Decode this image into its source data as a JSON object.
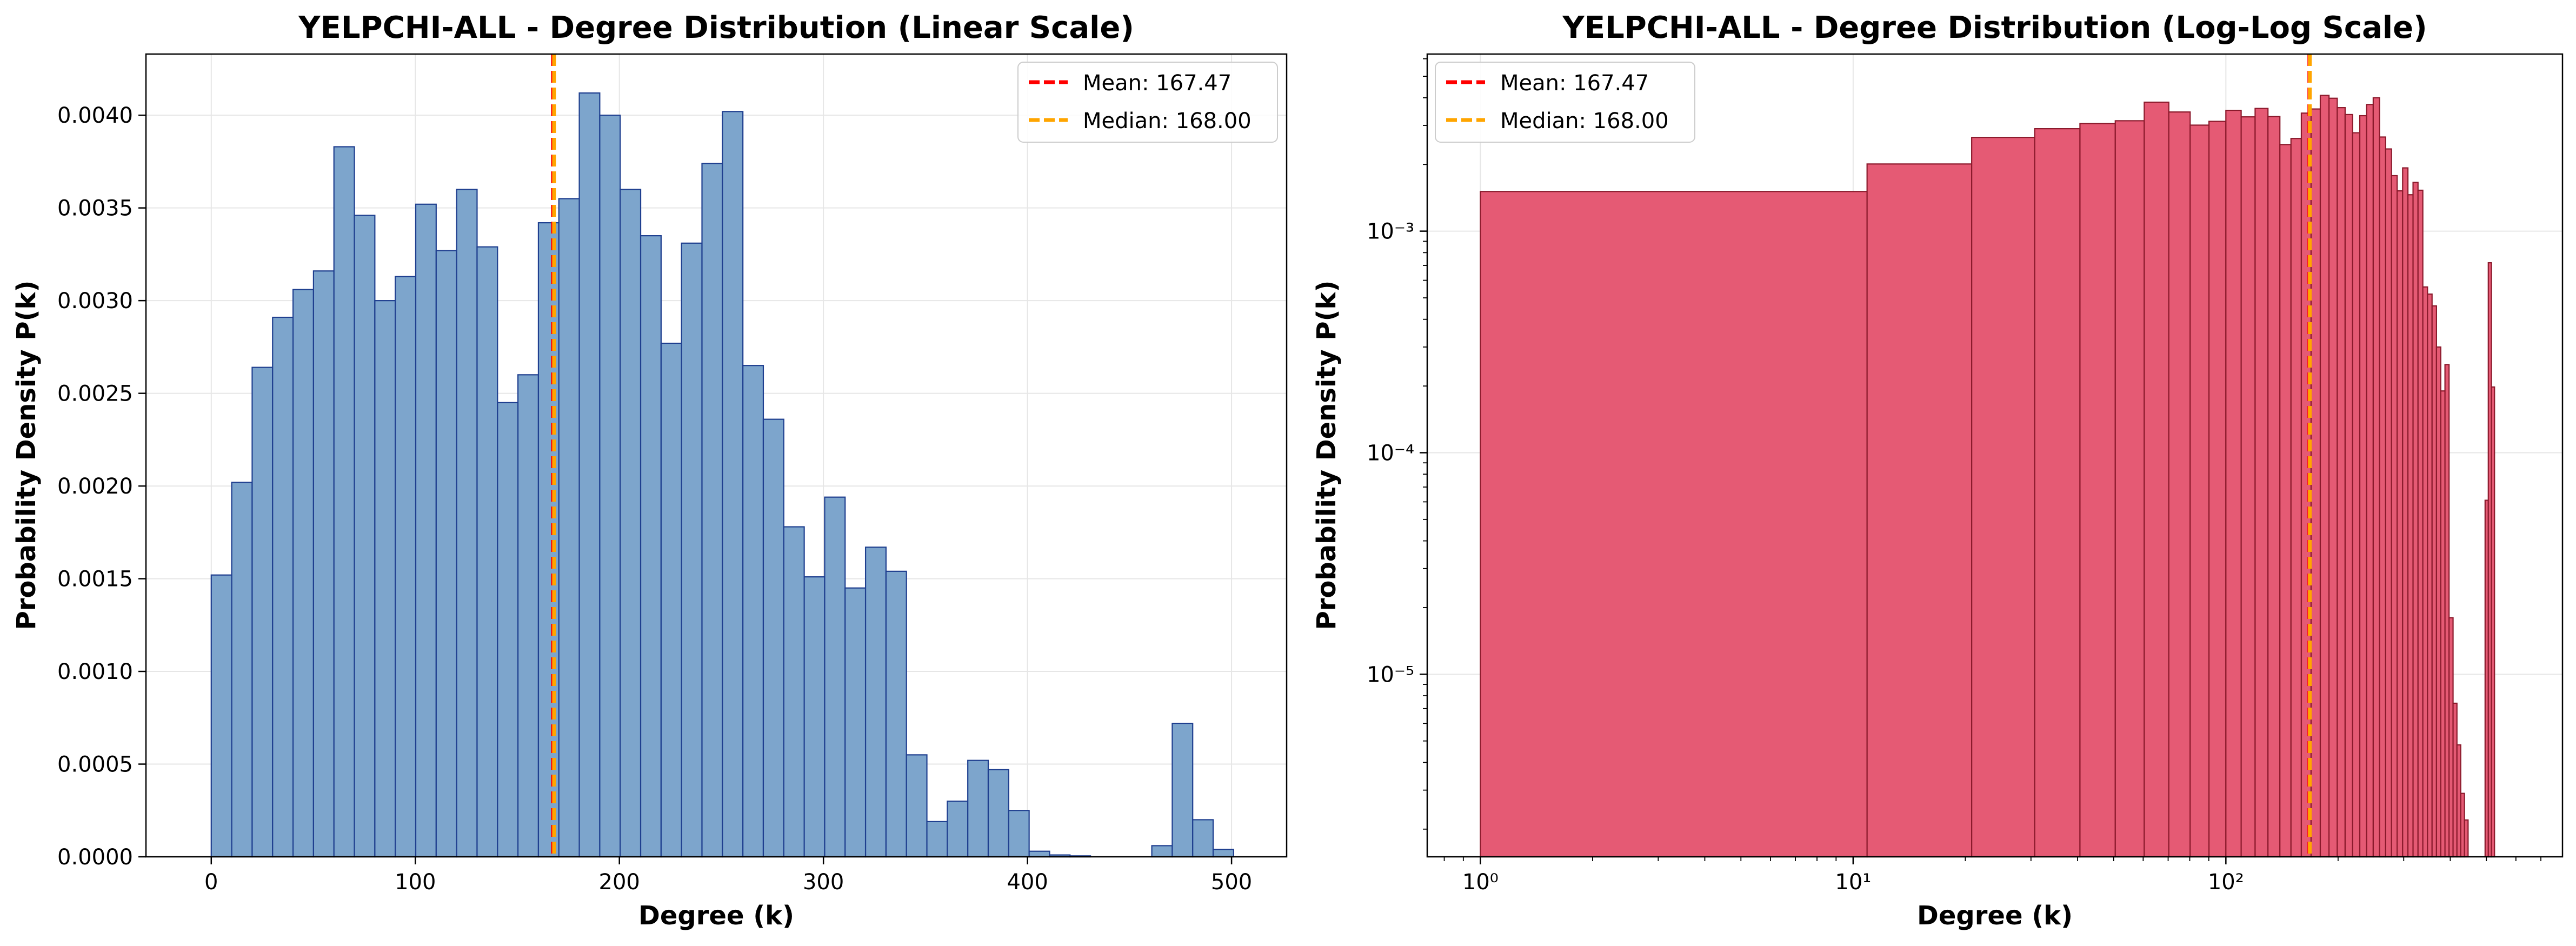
{
  "chart_data": [
    {
      "type": "bar",
      "title": "YELPCHI-ALL - Degree Distribution (Linear Scale)",
      "xlabel": "Degree (k)",
      "ylabel": "Probability Density P(k)",
      "xscale": "linear",
      "yscale": "linear",
      "xlim": [
        -32,
        527
      ],
      "ylim": [
        0,
        0.00433
      ],
      "xticks": [
        0,
        100,
        200,
        300,
        400,
        500
      ],
      "yticks": [
        0,
        0.0005,
        0.001,
        0.0015,
        0.002,
        0.0025,
        0.003,
        0.0035,
        0.004
      ],
      "xticklabels": [
        "0",
        "100",
        "200",
        "300",
        "400",
        "500"
      ],
      "yticklabels": [
        "0.0000",
        "0.0005",
        "0.0010",
        "0.0015",
        "0.0020",
        "0.0025",
        "0.0030",
        "0.0035",
        "0.0040"
      ],
      "grid": true,
      "legend_position": "top-right",
      "bar_color": "#7da5cc",
      "edge_color": "#1f3f8f",
      "bin_edges": [
        0,
        10.02,
        20.04,
        30.06,
        40.08,
        50.1,
        60.12,
        70.14,
        80.16,
        90.18,
        100.2,
        110.22,
        120.24,
        130.26,
        140.28,
        150.3,
        160.32,
        170.34,
        180.36,
        190.38,
        200.4,
        210.42,
        220.44,
        230.46,
        240.48,
        250.5,
        260.52,
        270.54,
        280.56,
        290.58,
        300.6,
        310.62,
        320.64,
        330.66,
        340.68,
        350.7,
        360.72,
        370.74,
        380.76,
        390.78,
        400.8,
        410.82,
        420.84,
        430.86,
        440.88,
        450.9,
        460.92,
        470.94,
        480.96,
        490.98,
        501
      ],
      "values": [
        0.00152,
        0.00202,
        0.00264,
        0.00291,
        0.00306,
        0.00316,
        0.00383,
        0.00346,
        0.003,
        0.00313,
        0.00352,
        0.00327,
        0.0036,
        0.00329,
        0.00245,
        0.0026,
        0.00342,
        0.00355,
        0.00412,
        0.004,
        0.0036,
        0.00335,
        0.00277,
        0.00331,
        0.00374,
        0.00402,
        0.00265,
        0.00236,
        0.00178,
        0.00151,
        0.00194,
        0.00145,
        0.00167,
        0.00154,
        0.00055,
        0.00019,
        0.0003,
        0.00052,
        0.00047,
        0.00025,
        3e-05,
        1e-05,
        5e-06,
        0,
        0,
        0,
        6e-05,
        0.00072,
        0.0002,
        4e-05
      ],
      "lines": [
        {
          "label": "Mean: 167.47",
          "x": 167.47,
          "color": "#ff0000"
        },
        {
          "label": "Median: 168.00",
          "x": 168.0,
          "color": "#ffa500"
        }
      ]
    },
    {
      "type": "bar",
      "title": "YELPCHI-ALL - Degree Distribution (Log-Log Scale)",
      "xlabel": "Degree (k)",
      "ylabel": "Probability Density P(k)",
      "xscale": "log",
      "yscale": "log",
      "xlim": [
        0.72,
        800
      ],
      "ylim": [
        1.5e-06,
        0.0063
      ],
      "xticks": [
        1,
        10,
        100
      ],
      "xticklabels": [
        "10⁰",
        "10¹",
        "10²"
      ],
      "yticks": [
        1e-05,
        0.0001,
        0.001
      ],
      "yticklabels": [
        "10⁻⁵",
        "10⁻⁴",
        "10⁻³"
      ],
      "grid": true,
      "legend_position": "top-left",
      "bar_color": "#e55a74",
      "edge_color": "#8b1a2c",
      "bin_edges": [
        1,
        10.9,
        20.8,
        30.7,
        40.6,
        50.5,
        60.4,
        70.3,
        80.2,
        90.1,
        100,
        109.9,
        119.8,
        129.7,
        139.6,
        149.5,
        159.4,
        169.3,
        179.2,
        189.1,
        199,
        208.9,
        218.8,
        228.7,
        238.6,
        248.5,
        258.4,
        268.3,
        278.2,
        288.1,
        298,
        307.9,
        317.8,
        327.7,
        337.6,
        347.5,
        357.4,
        367.3,
        377.2,
        387.1,
        397,
        406.9,
        416.8,
        426.7,
        436.6,
        446.5,
        456.4,
        466.3,
        476.2,
        486.1,
        496,
        505.9,
        515.8,
        525.7
      ],
      "values": [
        0.00151,
        0.00201,
        0.00265,
        0.0029,
        0.00306,
        0.00315,
        0.00382,
        0.00345,
        0.00301,
        0.00313,
        0.00351,
        0.00328,
        0.00358,
        0.00329,
        0.00246,
        0.00262,
        0.00341,
        0.00356,
        0.0041,
        0.00398,
        0.00361,
        0.00336,
        0.00278,
        0.00332,
        0.00373,
        0.004,
        0.00266,
        0.00235,
        0.00178,
        0.00152,
        0.00193,
        0.00146,
        0.00166,
        0.00153,
        0.00056,
        0.00052,
        0.00046,
        0.0003,
        0.00019,
        0.00025,
        1.8e-05,
        7.4e-06,
        4.8e-06,
        2.9e-06,
        2.2e-06,
        0,
        0,
        0,
        0,
        0,
        6.1e-05,
        0.00072,
        0.000198,
        3.45e-05
      ],
      "lines": [
        {
          "label": "Mean: 167.47",
          "x": 167.47,
          "color": "#ff0000"
        },
        {
          "label": "Median: 168.00",
          "x": 168.0,
          "color": "#ffa500"
        }
      ]
    }
  ]
}
